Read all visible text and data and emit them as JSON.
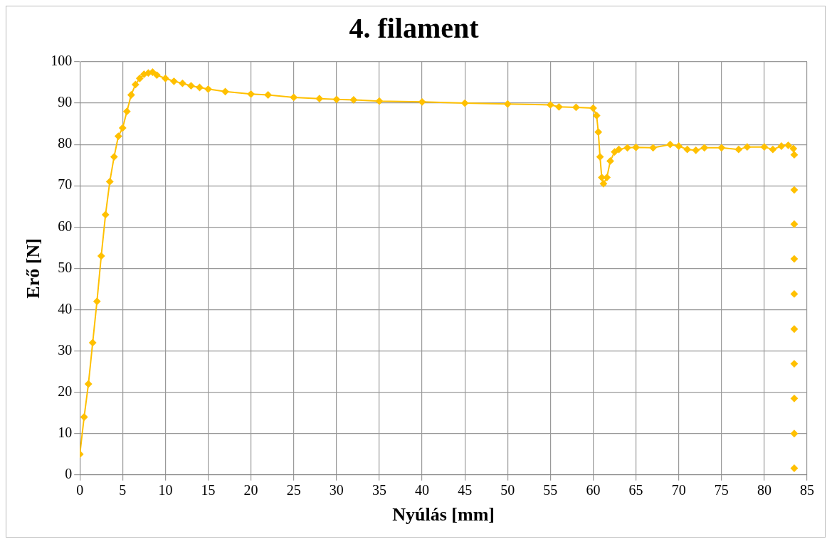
{
  "chart_data": {
    "type": "line",
    "title": "4. filament",
    "xlabel": "Nyúlás [mm]",
    "ylabel": "Erő [N]",
    "xlim": [
      0,
      85
    ],
    "xticks": [
      0,
      5,
      10,
      15,
      20,
      25,
      30,
      35,
      40,
      45,
      50,
      55,
      60,
      65,
      70,
      75,
      80,
      85
    ],
    "ylim": [
      0,
      100
    ],
    "yticks": [
      0,
      10,
      20,
      30,
      40,
      50,
      60,
      70,
      80,
      90,
      100
    ],
    "grid": true,
    "legend": false,
    "marker": "diamond",
    "line_style": "solid",
    "series": [
      {
        "color": "#ffc000",
        "x": [
          0,
          0.5,
          1,
          1.5,
          2,
          2.5,
          3,
          3.5,
          4,
          4.5,
          5,
          5.5,
          6,
          6.5,
          7,
          7.5,
          8,
          8.5,
          9,
          10,
          11,
          12,
          13,
          14,
          15,
          17,
          20,
          22,
          25,
          28,
          30,
          32,
          35,
          40,
          45,
          50,
          55,
          56,
          58,
          60,
          60.4,
          60.6,
          60.8,
          61,
          61.2,
          61.6,
          62,
          62.5,
          63,
          64,
          65,
          67,
          69,
          70,
          71,
          72,
          73,
          75,
          77,
          78,
          80,
          81,
          82,
          82.8,
          83.4
        ],
        "values": [
          5,
          14,
          22,
          32,
          42,
          53,
          63,
          71,
          77,
          82,
          84,
          88,
          92,
          94.5,
          96,
          97,
          97.3,
          97.5,
          96.8,
          96,
          95.3,
          94.8,
          94.2,
          93.8,
          93.4,
          92.8,
          92.2,
          92,
          91.4,
          91.1,
          90.9,
          90.8,
          90.5,
          90.3,
          90,
          89.8,
          89.6,
          89.1,
          89,
          88.8,
          87,
          83,
          77,
          72,
          70.5,
          72,
          76,
          78.2,
          78.8,
          79.2,
          79.3,
          79.2,
          80,
          79.6,
          78.8,
          78.6,
          79.2,
          79.2,
          78.8,
          79.4,
          79.4,
          78.8,
          79.6,
          79.8,
          79
        ]
      },
      {
        "type": "scatter",
        "color": "#ffc000",
        "x": [
          83.5,
          83.5,
          83.5,
          83.5,
          83.5,
          83.5,
          83.5,
          83.5,
          83.5,
          83.5
        ],
        "values": [
          77.5,
          69,
          60.7,
          52.3,
          43.8,
          35.3,
          26.9,
          18.5,
          10,
          1.6
        ]
      }
    ]
  }
}
